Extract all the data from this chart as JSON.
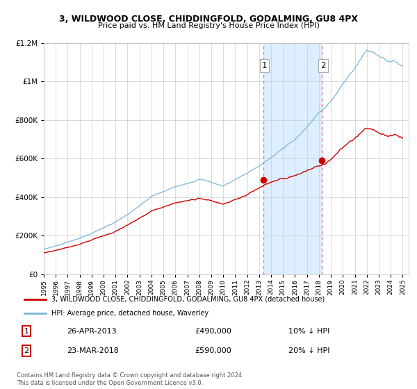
{
  "title": "3, WILDWOOD CLOSE, CHIDDINGFOLD, GODALMING, GU8 4PX",
  "subtitle": "Price paid vs. HM Land Registry's House Price Index (HPI)",
  "sale1": {
    "date": "26-APR-2013",
    "price": 490000,
    "label": "1",
    "hpi_pct": "10% ↓ HPI"
  },
  "sale2": {
    "date": "23-MAR-2018",
    "price": 590000,
    "label": "2",
    "hpi_pct": "20% ↓ HPI"
  },
  "legend_line1": "3, WILDWOOD CLOSE, CHIDDINGFOLD, GODALMING, GU8 4PX (detached house)",
  "legend_line2": "HPI: Average price, detached house, Waverley",
  "footer": "Contains HM Land Registry data © Crown copyright and database right 2024.\nThis data is licensed under the Open Government Licence v3.0.",
  "hpi_color": "#7ab4d8",
  "price_color": "#cc0000",
  "sale_dot_color": "#cc0000",
  "shaded_color": "#ddeeff",
  "background_color": "#ffffff",
  "ylim": [
    0,
    1200000
  ],
  "yticks": [
    0,
    200000,
    400000,
    600000,
    800000,
    1000000,
    1200000
  ],
  "xlim_start": 1995.0,
  "xlim_end": 2025.5
}
